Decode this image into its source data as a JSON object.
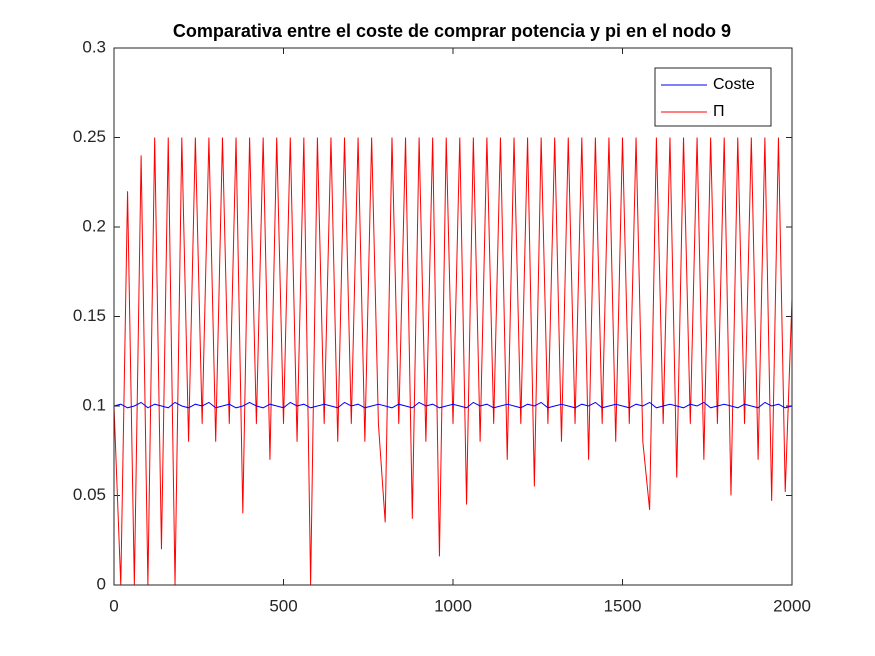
{
  "chart_data": {
    "type": "line",
    "title": "Comparativa entre el coste de comprar potencia y pi en el nodo 9",
    "x": [
      0,
      20,
      40,
      60,
      80,
      100,
      120,
      140,
      160,
      180,
      200,
      220,
      240,
      260,
      280,
      300,
      320,
      340,
      360,
      380,
      400,
      420,
      440,
      460,
      480,
      500,
      520,
      540,
      560,
      580,
      600,
      620,
      640,
      660,
      680,
      700,
      720,
      740,
      760,
      780,
      800,
      820,
      840,
      860,
      880,
      900,
      920,
      940,
      960,
      980,
      1000,
      1020,
      1040,
      1060,
      1080,
      1100,
      1120,
      1140,
      1160,
      1180,
      1200,
      1220,
      1240,
      1260,
      1280,
      1300,
      1320,
      1340,
      1360,
      1380,
      1400,
      1420,
      1440,
      1460,
      1480,
      1500,
      1520,
      1540,
      1560,
      1580,
      1600,
      1620,
      1640,
      1660,
      1680,
      1700,
      1720,
      1740,
      1760,
      1780,
      1800,
      1820,
      1840,
      1860,
      1880,
      1900,
      1920,
      1940,
      1960,
      1980,
      2000
    ],
    "series": [
      {
        "name": "Coste",
        "color": "#0000ff",
        "values": [
          0.1,
          0.101,
          0.099,
          0.1,
          0.102,
          0.099,
          0.101,
          0.1,
          0.099,
          0.102,
          0.1,
          0.099,
          0.101,
          0.1,
          0.102,
          0.099,
          0.1,
          0.101,
          0.099,
          0.1,
          0.102,
          0.1,
          0.099,
          0.101,
          0.1,
          0.099,
          0.102,
          0.1,
          0.101,
          0.099,
          0.1,
          0.101,
          0.1,
          0.099,
          0.102,
          0.1,
          0.101,
          0.099,
          0.1,
          0.101,
          0.1,
          0.099,
          0.101,
          0.1,
          0.099,
          0.102,
          0.1,
          0.101,
          0.099,
          0.1,
          0.101,
          0.1,
          0.099,
          0.102,
          0.1,
          0.101,
          0.099,
          0.1,
          0.101,
          0.1,
          0.099,
          0.101,
          0.1,
          0.102,
          0.099,
          0.1,
          0.101,
          0.1,
          0.099,
          0.101,
          0.1,
          0.102,
          0.099,
          0.1,
          0.101,
          0.1,
          0.099,
          0.101,
          0.1,
          0.102,
          0.099,
          0.1,
          0.101,
          0.1,
          0.099,
          0.101,
          0.1,
          0.102,
          0.099,
          0.1,
          0.101,
          0.1,
          0.099,
          0.101,
          0.1,
          0.099,
          0.102,
          0.1,
          0.101,
          0.099,
          0.1
        ]
      },
      {
        "name": "Π",
        "color": "#ff0000",
        "values": [
          0.1,
          0,
          0.22,
          0,
          0.24,
          0,
          0.25,
          0.02,
          0.25,
          0,
          0.25,
          0.08,
          0.25,
          0.09,
          0.25,
          0.08,
          0.25,
          0.09,
          0.25,
          0.04,
          0.25,
          0.09,
          0.25,
          0.07,
          0.25,
          0.09,
          0.25,
          0.08,
          0.25,
          0,
          0.25,
          0.09,
          0.25,
          0.08,
          0.25,
          0.09,
          0.25,
          0.08,
          0.25,
          0.09,
          0.035,
          0.25,
          0.09,
          0.25,
          0.037,
          0.25,
          0.08,
          0.25,
          0.016,
          0.25,
          0.09,
          0.25,
          0.045,
          0.25,
          0.08,
          0.25,
          0.09,
          0.25,
          0.07,
          0.25,
          0.09,
          0.25,
          0.055,
          0.25,
          0.09,
          0.25,
          0.08,
          0.25,
          0.09,
          0.25,
          0.07,
          0.25,
          0.09,
          0.25,
          0.08,
          0.25,
          0.09,
          0.25,
          0.08,
          0.042,
          0.25,
          0.09,
          0.25,
          0.06,
          0.25,
          0.09,
          0.25,
          0.07,
          0.25,
          0.09,
          0.25,
          0.05,
          0.25,
          0.09,
          0.25,
          0.07,
          0.25,
          0.047,
          0.25,
          0.052,
          0.16
        ]
      }
    ],
    "xlim": [
      0,
      2000
    ],
    "xticks": [
      0,
      500,
      1000,
      1500,
      2000
    ],
    "ylim": [
      0,
      0.3
    ],
    "yticks": [
      0,
      0.05,
      0.1,
      0.15,
      0.2,
      0.25,
      0.3
    ],
    "legend": "northeast"
  }
}
